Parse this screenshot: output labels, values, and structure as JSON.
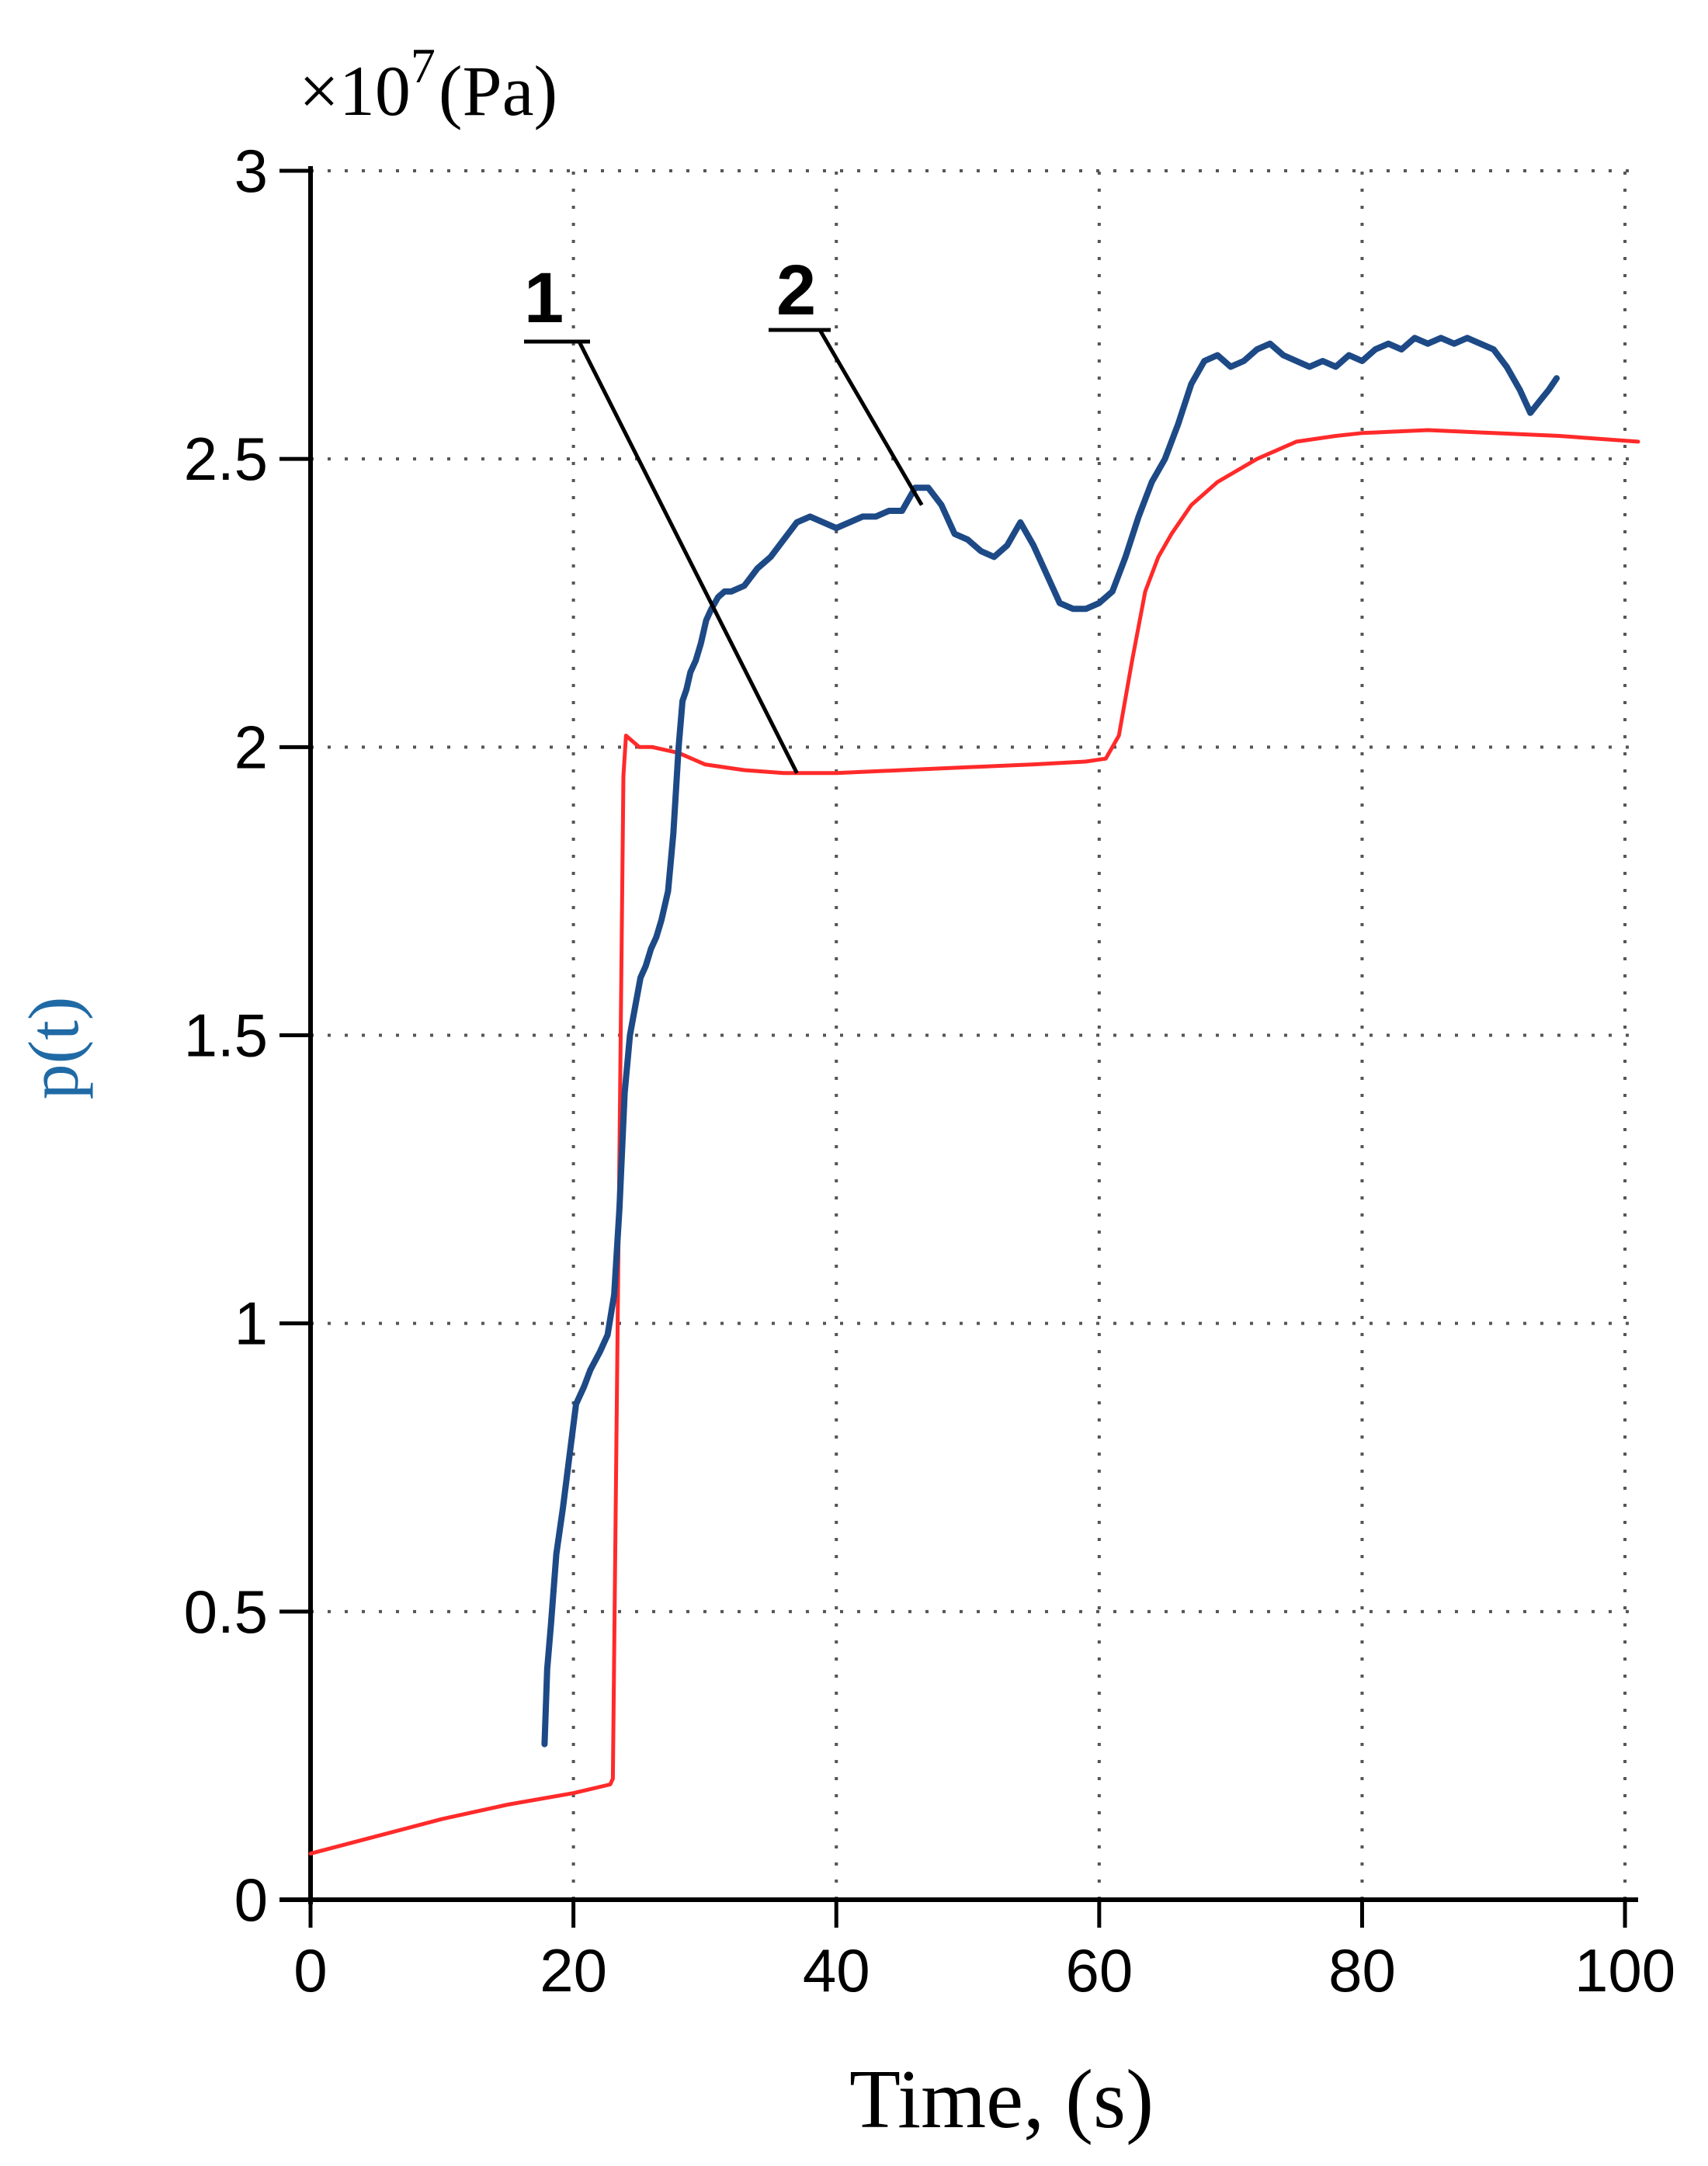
{
  "chart_data": {
    "type": "line",
    "xlabel": "Time, (s)",
    "ylabel": "p(t)",
    "scale_prefix": "×10",
    "scale_exponent": "7",
    "scale_unit": "(Pa)",
    "xlim": [
      0,
      101
    ],
    "ylim": [
      0,
      3
    ],
    "x_ticks": [
      0,
      20,
      40,
      60,
      80,
      100
    ],
    "y_ticks": [
      0,
      0.5,
      1,
      1.5,
      2,
      2.5,
      3
    ],
    "x_tick_labels": [
      "0",
      "20",
      "40",
      "60",
      "80",
      "100"
    ],
    "y_tick_labels": [
      "0",
      "0.5",
      "1",
      "1.5",
      "2",
      "2.5",
      "3"
    ],
    "grid": true,
    "colors": {
      "series_1": "#ff2a2a",
      "series_2": "#1d4a86",
      "ylabel": "#1f6aa5",
      "grid": "#555555"
    },
    "series": [
      {
        "label": "1",
        "x": [
          0,
          5,
          10,
          15,
          20,
          22.8,
          23.0,
          23.8,
          24.0,
          24.5,
          25,
          26,
          28,
          30,
          33,
          36,
          40,
          45,
          50,
          55,
          59,
          60.5,
          61.5,
          62.5,
          63.5,
          64.5,
          65.5,
          67,
          69,
          72,
          75,
          78,
          80,
          85,
          90,
          95,
          101
        ],
        "y": [
          0.08,
          0.11,
          0.14,
          0.165,
          0.185,
          0.2,
          0.21,
          1.95,
          2.02,
          2.01,
          2.0,
          2.0,
          1.99,
          1.97,
          1.96,
          1.955,
          1.955,
          1.96,
          1.965,
          1.97,
          1.975,
          1.98,
          2.02,
          2.15,
          2.27,
          2.33,
          2.37,
          2.42,
          2.46,
          2.5,
          2.53,
          2.54,
          2.545,
          2.55,
          2.545,
          2.54,
          2.53
        ]
      },
      {
        "label": "2",
        "x": [
          17.8,
          18,
          18.3,
          18.7,
          19.2,
          19.7,
          20.2,
          20.8,
          21.3,
          22,
          22.6,
          23.1,
          23.5,
          23.9,
          24.3,
          24.7,
          25.1,
          25.5,
          25.9,
          26.3,
          26.7,
          27.2,
          27.6,
          28.0,
          28.3,
          28.6,
          28.9,
          29.3,
          29.7,
          30.1,
          30.5,
          31,
          31.5,
          32,
          33,
          34,
          35,
          36,
          37,
          38,
          39,
          40,
          41,
          42,
          43,
          44,
          45,
          46,
          47,
          48,
          49,
          50,
          51,
          52,
          53,
          54,
          55,
          56,
          57,
          58,
          59,
          60,
          61,
          62,
          63,
          64,
          65,
          66,
          67,
          68,
          69,
          70,
          71,
          72,
          73,
          74,
          75,
          76,
          77,
          78,
          79,
          80,
          81,
          82,
          83,
          84,
          85,
          86,
          87,
          88,
          89,
          90,
          91,
          92,
          92.8,
          93.5,
          94.2,
          94.8
        ],
        "y": [
          0.27,
          0.4,
          0.48,
          0.6,
          0.68,
          0.77,
          0.86,
          0.89,
          0.92,
          0.95,
          0.98,
          1.05,
          1.2,
          1.4,
          1.5,
          1.55,
          1.6,
          1.62,
          1.65,
          1.67,
          1.7,
          1.75,
          1.85,
          2.0,
          2.08,
          2.1,
          2.13,
          2.15,
          2.18,
          2.22,
          2.24,
          2.26,
          2.27,
          2.27,
          2.28,
          2.31,
          2.33,
          2.36,
          2.39,
          2.4,
          2.39,
          2.38,
          2.39,
          2.4,
          2.4,
          2.41,
          2.41,
          2.45,
          2.45,
          2.42,
          2.37,
          2.36,
          2.34,
          2.33,
          2.35,
          2.39,
          2.35,
          2.3,
          2.25,
          2.24,
          2.24,
          2.25,
          2.27,
          2.33,
          2.4,
          2.46,
          2.5,
          2.56,
          2.63,
          2.67,
          2.68,
          2.66,
          2.67,
          2.69,
          2.7,
          2.68,
          2.67,
          2.66,
          2.67,
          2.66,
          2.68,
          2.67,
          2.69,
          2.7,
          2.69,
          2.71,
          2.7,
          2.71,
          2.7,
          2.71,
          2.7,
          2.69,
          2.66,
          2.62,
          2.58,
          2.6,
          2.62,
          2.64
        ]
      }
    ]
  }
}
